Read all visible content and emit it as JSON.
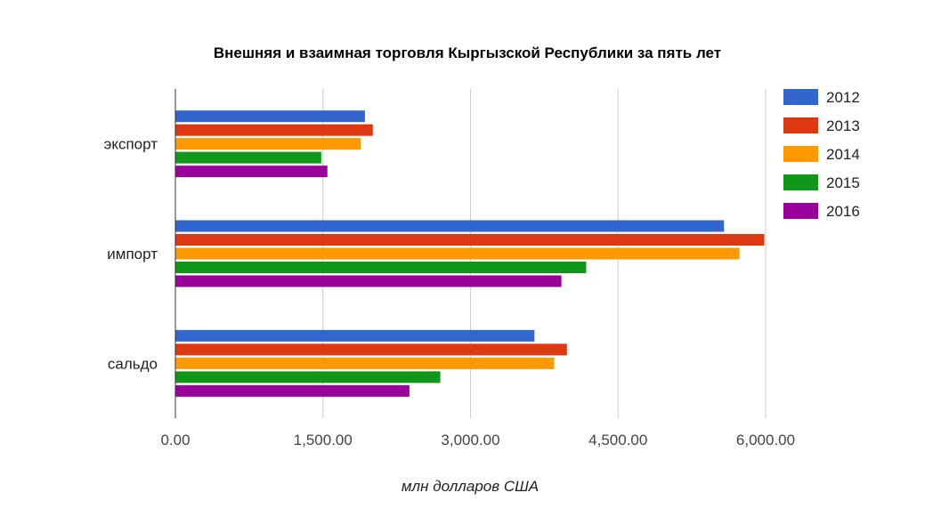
{
  "chart_data": {
    "type": "bar",
    "orientation": "horizontal",
    "title": "Внешняя и взаимная торговля Кыргызской Республики за пять лет",
    "xlabel": "млн долларов США",
    "ylabel": "",
    "categories": [
      "экспорт",
      "импорт",
      "сальдо"
    ],
    "xlim": [
      0,
      6000
    ],
    "ticks": [
      "0.00",
      "1,500.00",
      "3,000.00",
      "4,500.00",
      "6,000.00"
    ],
    "tick_values": [
      0,
      1500,
      3000,
      4500,
      6000
    ],
    "grid": true,
    "legend_position": "right",
    "series": [
      {
        "name": "2012",
        "color": "#3366cc",
        "values": [
          1927,
          5577,
          3650
        ]
      },
      {
        "name": "2013",
        "color": "#dc3912",
        "values": [
          2007,
          5987,
          3980
        ]
      },
      {
        "name": "2014",
        "color": "#ff9900",
        "values": [
          1884,
          5734,
          3850
        ]
      },
      {
        "name": "2015",
        "color": "#109618",
        "values": [
          1483,
          4176,
          2693
        ]
      },
      {
        "name": "2016",
        "color": "#990099",
        "values": [
          1545,
          3924,
          2379
        ]
      }
    ]
  }
}
